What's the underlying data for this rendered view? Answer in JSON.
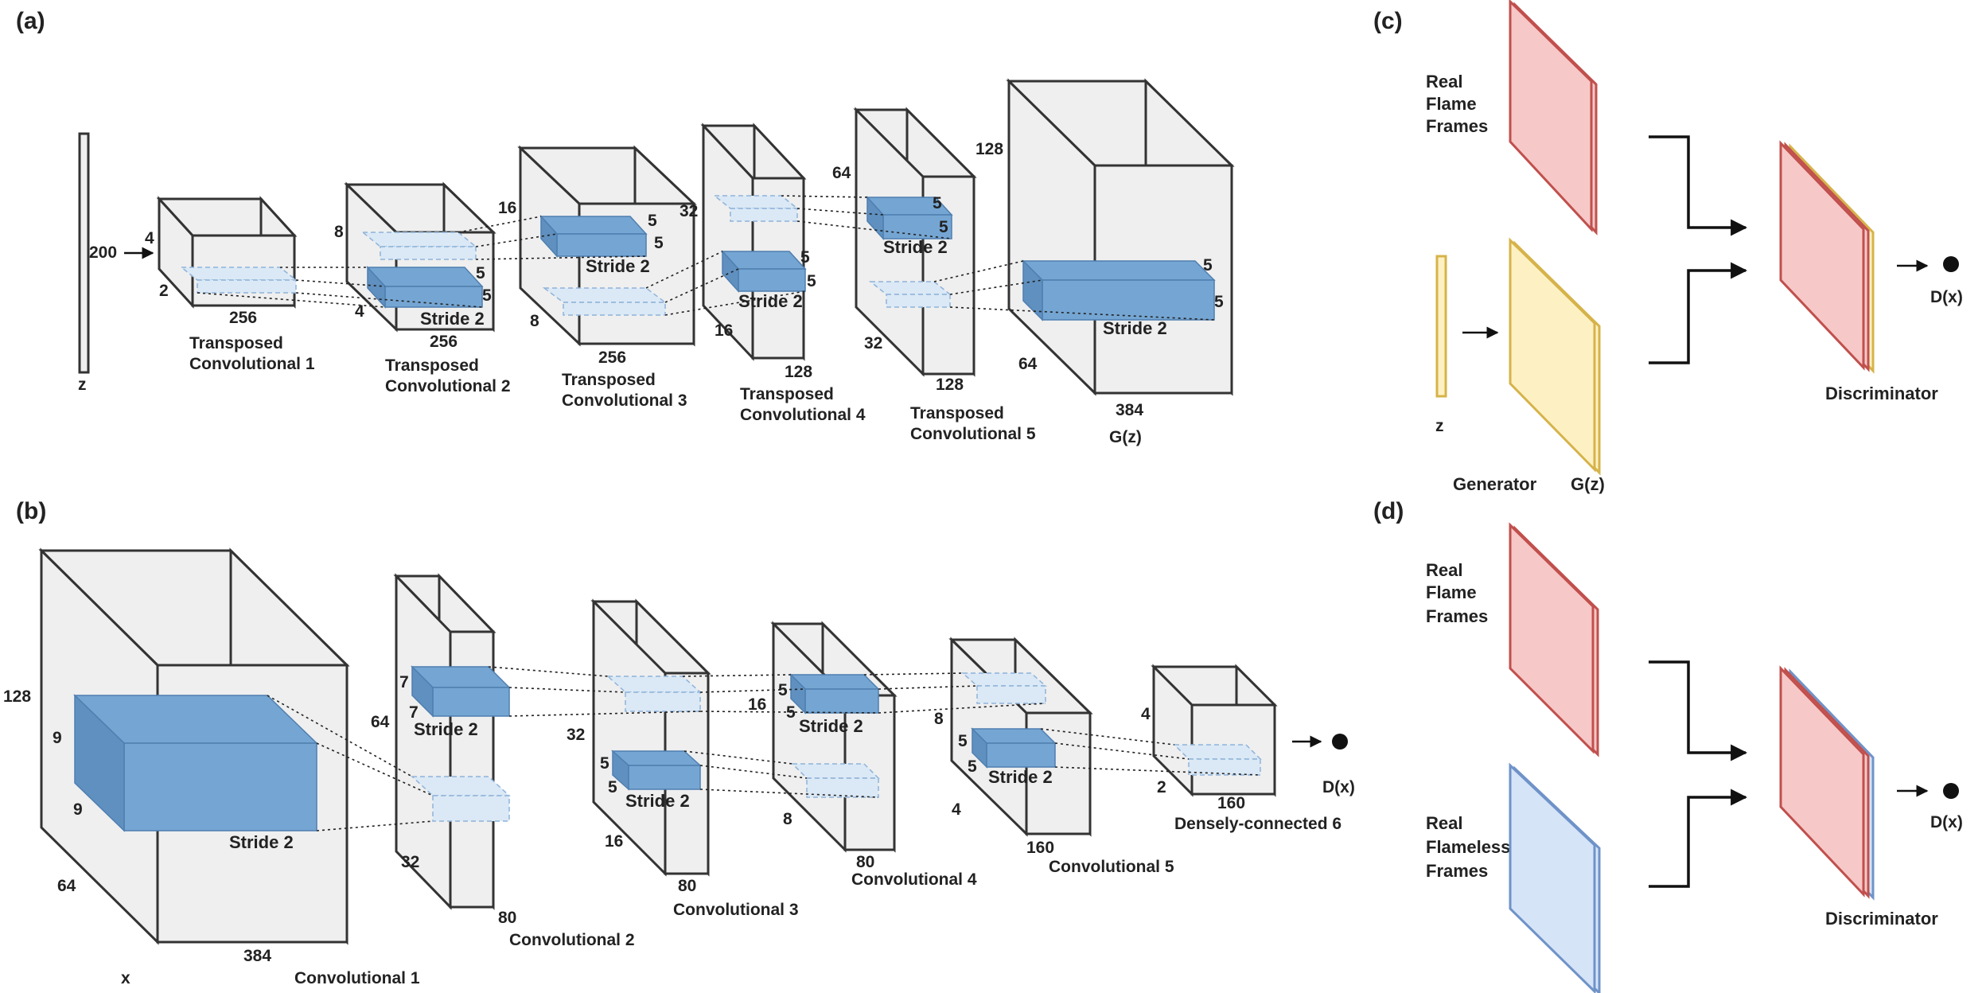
{
  "panels": {
    "a": {
      "tag": "(a)",
      "z": {
        "label": "z",
        "size": "200"
      },
      "layers": [
        {
          "id": "t1",
          "name": [
            "Transposed",
            "Convolutional 1"
          ],
          "h": "4",
          "d": "2",
          "w": "256"
        },
        {
          "id": "t2",
          "name": [
            "Transposed",
            "Convolutional 2"
          ],
          "h": "8",
          "d": "4",
          "w": "256",
          "kernel": [
            "5",
            "5"
          ],
          "stride": "Stride 2"
        },
        {
          "id": "t3",
          "name": [
            "Transposed",
            "Convolutional 3"
          ],
          "h": "16",
          "d": "8",
          "w": "256",
          "kernel": [
            "5",
            "5"
          ],
          "stride": "Stride 2"
        },
        {
          "id": "t4",
          "name": [
            "Transposed",
            "Convolutional 4"
          ],
          "h": "32",
          "d": "16",
          "w": "128",
          "kernel": [
            "5",
            "5"
          ],
          "stride": "Stride 2"
        },
        {
          "id": "t5",
          "name": [
            "Transposed",
            "Convolutional 5"
          ],
          "h": "64",
          "d": "32",
          "w": "128",
          "kernel": [
            "5",
            "5"
          ],
          "stride": "Stride 2"
        },
        {
          "id": "gz",
          "name": [
            "G(z)"
          ],
          "h": "128",
          "d": "64",
          "w": "384",
          "kernel": [
            "5",
            "5"
          ],
          "stride": "Stride 2"
        }
      ]
    },
    "b": {
      "tag": "(b)",
      "input_label": "x",
      "output_label": "D(x)",
      "layers": [
        {
          "id": "c1",
          "name": "Convolutional 1",
          "h": "128",
          "d": "64",
          "w": "384",
          "kernel": [
            "9",
            "9"
          ],
          "stride": "Stride 2"
        },
        {
          "id": "c2",
          "name": "Convolutional 2",
          "h": "64",
          "d": "32",
          "w": "80",
          "kernel": [
            "7",
            "7"
          ],
          "stride": "Stride 2"
        },
        {
          "id": "c3",
          "name": "Convolutional 3",
          "h": "32",
          "d": "16",
          "w": "80",
          "kernel": [
            "5",
            "5"
          ],
          "stride": "Stride 2"
        },
        {
          "id": "c4",
          "name": "Convolutional 4",
          "h": "16",
          "d": "8",
          "w": "80",
          "kernel": [
            "5",
            "5"
          ],
          "stride": "Stride 2"
        },
        {
          "id": "c5",
          "name": "Convolutional 5",
          "h": "8",
          "d": "4",
          "w": "160",
          "kernel": [
            "5",
            "5"
          ],
          "stride": "Stride 2"
        },
        {
          "id": "d6",
          "name": "Densely-connected 6",
          "h": "4",
          "d": "2",
          "w": "160"
        }
      ]
    },
    "c": {
      "tag": "(c)",
      "real_label": [
        "Real",
        "Flame",
        "Frames"
      ],
      "z_label": "z",
      "generator_label": "Generator",
      "gz_label": "G(z)",
      "discriminator_label": "Discriminator",
      "output_label": "D(x)"
    },
    "d": {
      "tag": "(d)",
      "real_label": [
        "Real",
        "Flame",
        "Frames"
      ],
      "flameless_label": [
        "Real",
        "Flameless",
        "Frames"
      ],
      "discriminator_label": "Discriminator",
      "output_label": "D(x)"
    }
  },
  "colors": {
    "box_fill": "#efefef",
    "box_stroke": "#333333",
    "kernel_fill": "#75a6d3",
    "kernel_stroke": "#4f7fb0",
    "ghost_fill": "#dbe9f6",
    "ghost_stroke": "#8fb3d9",
    "real_fill": "#f7c8c8",
    "real_stroke": "#c0504d",
    "gen_fill": "#fdf1c4",
    "gen_stroke": "#d6b34a",
    "flameless_fill": "#d6e4f8",
    "flameless_stroke": "#6f93c8"
  }
}
